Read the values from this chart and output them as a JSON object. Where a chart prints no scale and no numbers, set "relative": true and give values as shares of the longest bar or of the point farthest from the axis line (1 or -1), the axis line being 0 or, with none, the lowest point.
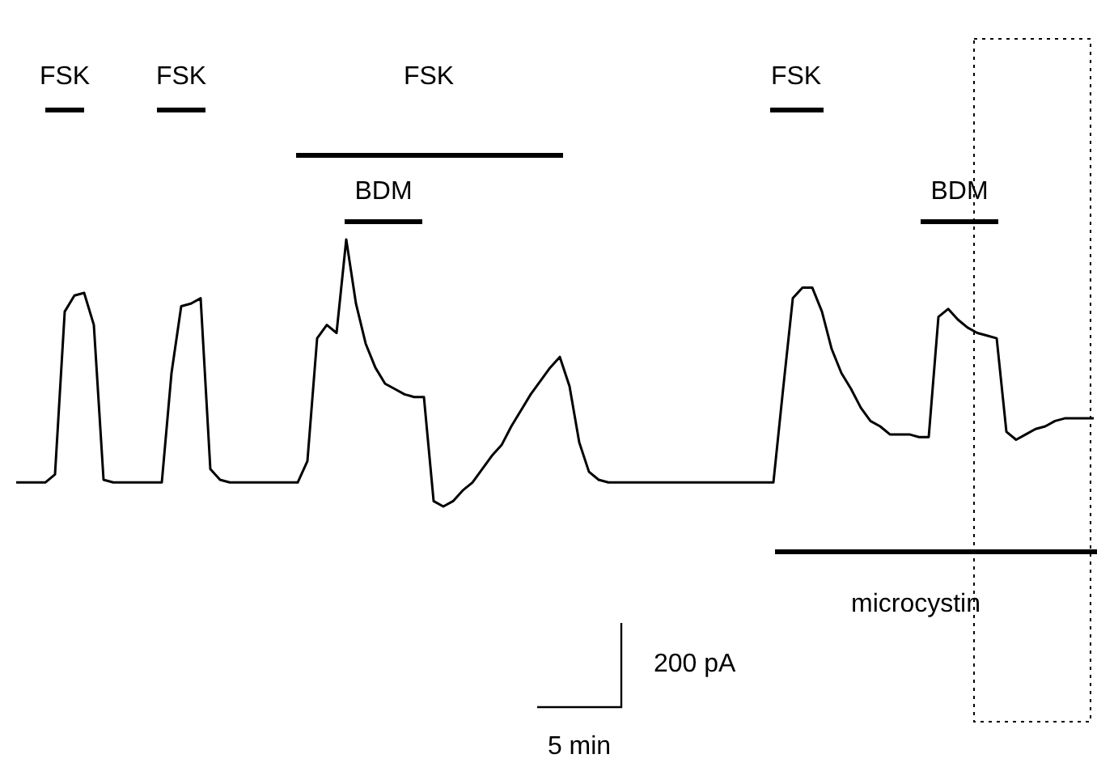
{
  "chart_data": {
    "type": "line",
    "relative": true,
    "tick_labels": false,
    "categories": [
      null,
      null,
      null,
      null,
      null,
      null,
      null,
      null,
      null,
      null,
      null,
      null,
      null,
      null,
      null,
      null,
      null,
      null,
      null,
      null,
      null,
      null,
      null,
      null,
      null,
      null,
      null,
      null,
      null,
      null,
      null,
      null,
      null,
      null,
      null,
      null,
      null,
      null,
      null,
      null,
      null,
      null,
      null,
      null,
      null,
      null,
      null,
      null,
      null,
      null,
      null,
      null,
      null,
      null,
      null,
      null,
      null,
      null,
      null,
      null,
      null,
      null,
      null,
      null,
      null,
      null,
      null,
      null,
      null,
      null,
      null,
      null,
      null,
      null,
      null,
      null,
      null,
      null,
      null,
      null,
      null,
      null,
      null,
      null,
      null,
      null,
      null,
      null,
      null,
      null,
      null,
      null,
      null,
      null,
      null,
      null,
      null,
      null,
      null,
      null,
      null,
      null,
      null,
      null,
      null,
      null,
      null,
      null,
      null,
      null,
      null,
      null
    ],
    "series": [
      {
        "color": "#000000",
        "values": [
          0.09,
          0.09,
          0.09,
          0.09,
          0.12,
          0.73,
          0.79,
          0.8,
          0.68,
          0.1,
          0.09,
          0.09,
          0.09,
          0.09,
          0.09,
          0.09,
          0.5,
          0.75,
          0.76,
          0.78,
          0.14,
          0.1,
          0.09,
          0.09,
          0.09,
          0.09,
          0.09,
          0.09,
          0.09,
          0.09,
          0.17,
          0.63,
          0.68,
          0.65,
          1,
          0.76,
          0.61,
          0.52,
          0.46,
          0.44,
          0.42,
          0.41,
          0.41,
          0.02,
          0,
          0.02,
          0.06,
          0.09,
          0.14,
          0.19,
          0.23,
          0.3,
          0.36,
          0.42,
          0.47,
          0.52,
          0.56,
          0.45,
          0.24,
          0.13,
          0.1,
          0.09,
          0.09,
          0.09,
          0.09,
          0.09,
          0.09,
          0.09,
          0.09,
          0.09,
          0.09,
          0.09,
          0.09,
          0.09,
          0.09,
          0.09,
          0.09,
          0.09,
          0.09,
          0.44,
          0.78,
          0.82,
          0.82,
          0.73,
          0.59,
          0.5,
          0.44,
          0.37,
          0.32,
          0.3,
          0.27,
          0.27,
          0.27,
          0.26,
          0.26,
          0.71,
          0.74,
          0.7,
          0.67,
          0.65,
          0.64,
          0.63,
          0.28,
          0.25,
          0.27,
          0.29,
          0.3,
          0.32,
          0.33,
          0.33,
          0.33,
          0.33
        ]
      }
    ],
    "annotations": [
      "FSK",
      "FSK",
      "FSK",
      "BDM",
      "FSK",
      "BDM",
      "microcystin",
      "200 pA",
      "5 min"
    ]
  }
}
